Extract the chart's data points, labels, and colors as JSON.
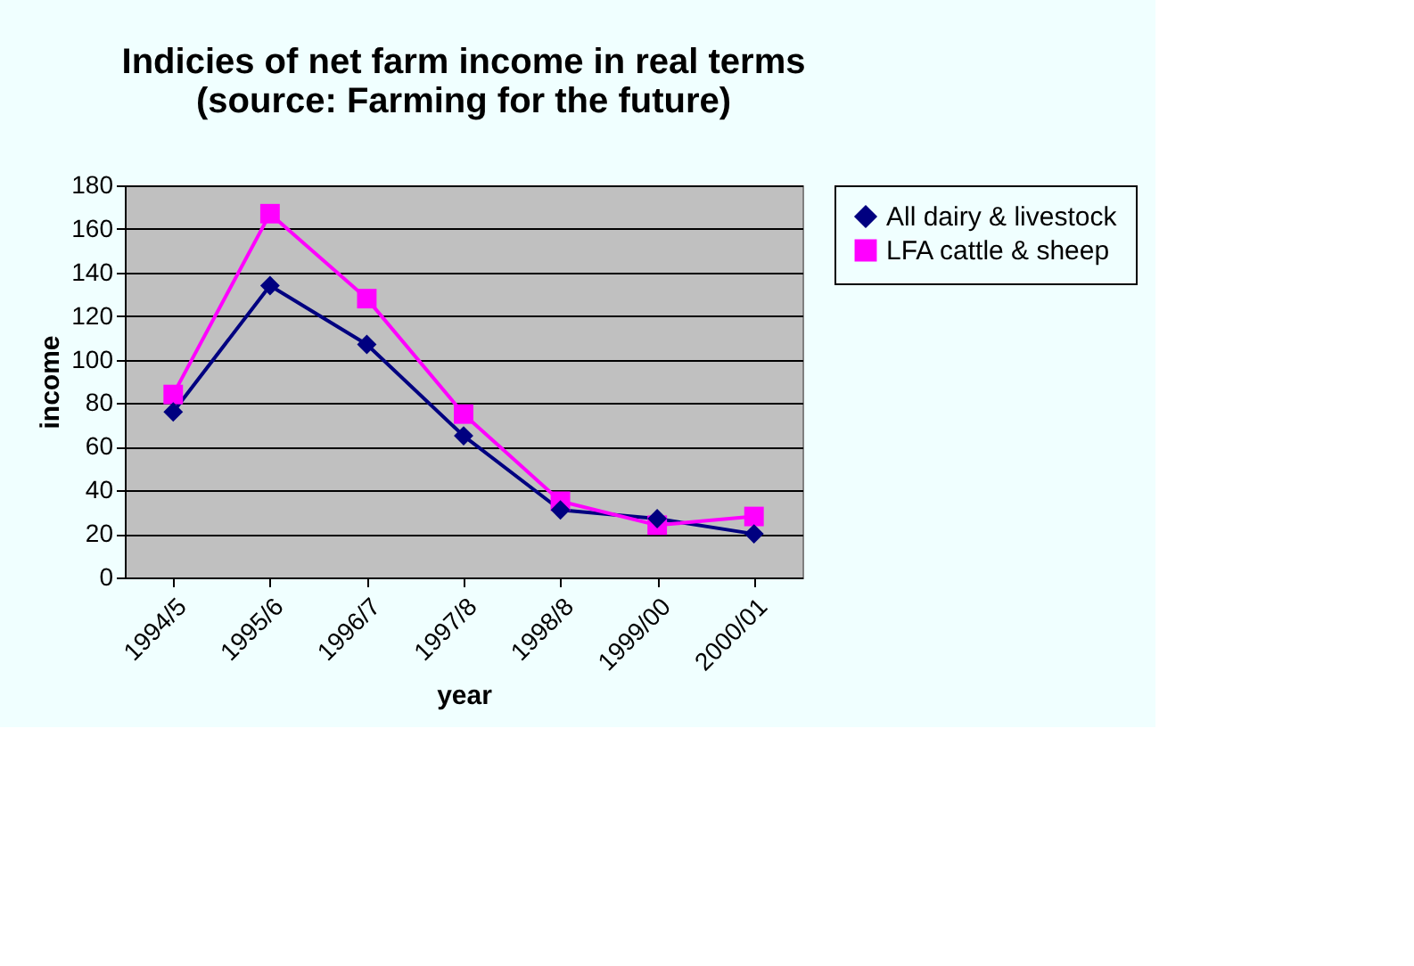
{
  "chart_data": {
    "type": "line",
    "title": "Indicies of net farm income in real terms\n(source: Farming for the future)",
    "xlabel": "year",
    "ylabel": "income",
    "categories": [
      "1994/5",
      "1995/6",
      "1996/7",
      "1997/8",
      "1998/8",
      "1999/00",
      "2000/01"
    ],
    "series": [
      {
        "name": "All dairy & livestock",
        "color": "#000080",
        "marker": "diamond",
        "values": [
          76,
          134,
          107,
          65,
          31,
          27,
          20
        ]
      },
      {
        "name": "LFA cattle & sheep",
        "color": "#ff00ff",
        "marker": "square",
        "values": [
          84,
          167,
          128,
          75,
          35,
          24,
          28
        ]
      }
    ],
    "ylim": [
      0,
      180
    ],
    "yticks": [
      0,
      20,
      40,
      60,
      80,
      100,
      120,
      140,
      160,
      180
    ],
    "grid": "y",
    "legend": "right"
  }
}
